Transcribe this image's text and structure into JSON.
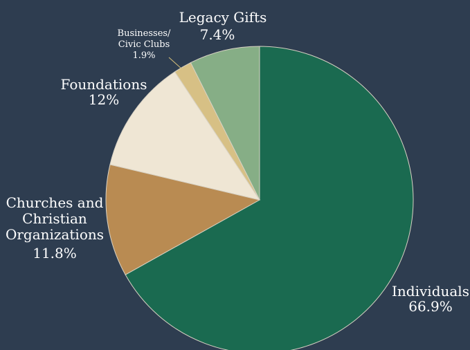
{
  "chart_data": {
    "type": "pie",
    "title": "",
    "start_angle_deg": 0,
    "direction": "clockwise",
    "slices": [
      {
        "label_lines": [
          "Individuals"
        ],
        "value_text": "66.9%",
        "value": 66.9,
        "color": "#1a6a50"
      },
      {
        "label_lines": [
          "Churches and",
          "Christian",
          "Organizations"
        ],
        "value_text": "11.8%",
        "value": 11.8,
        "color": "#b98b52"
      },
      {
        "label_lines": [
          "Foundations"
        ],
        "value_text": "12%",
        "value": 12.0,
        "color": "#efe6d4"
      },
      {
        "label_lines": [
          "Businesses/",
          "Civic Clubs"
        ],
        "value_text": "1.9%",
        "value": 1.9,
        "color": "#d7c085"
      },
      {
        "label_lines": [
          "Legacy Gifts"
        ],
        "value_text": "7.4%",
        "value": 7.4,
        "color": "#86ae86"
      }
    ]
  }
}
